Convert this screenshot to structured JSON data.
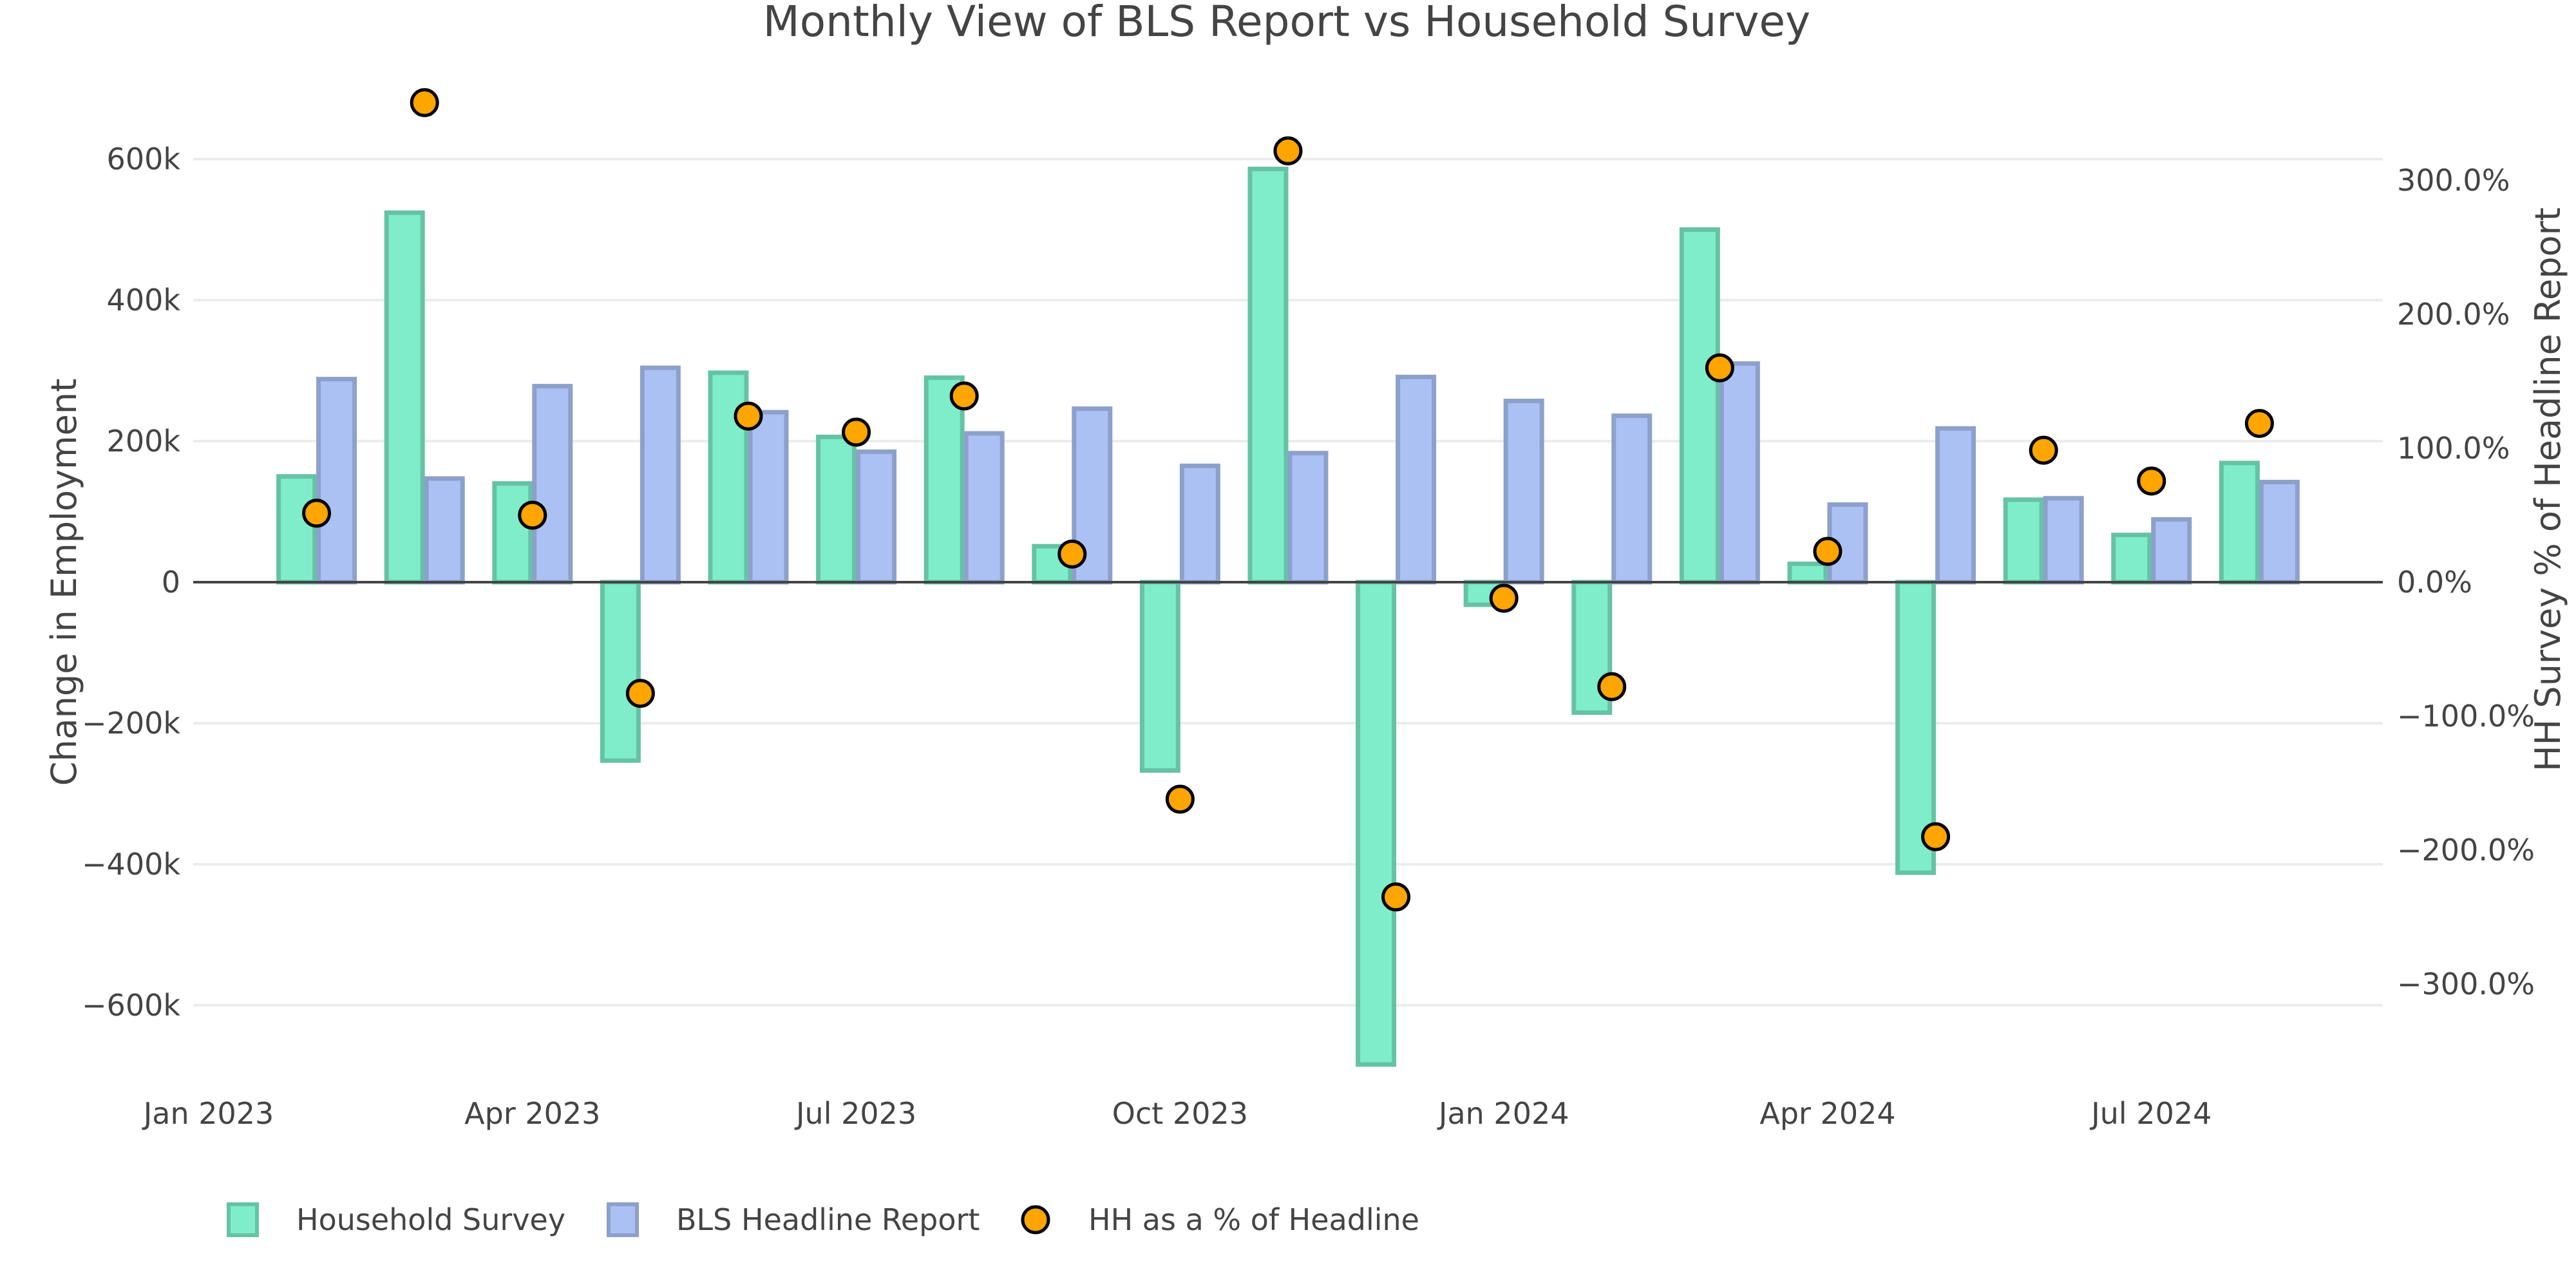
{
  "chart_data": {
    "type": "bar",
    "title": "Monthly View of BLS Report vs Household Survey",
    "xlabel": "",
    "ylabel": "Change in Employment",
    "y2label": "HH Survey % of Headline Report",
    "ylim": [
      -720000,
      700000
    ],
    "y2lim": [
      -354,
      340
    ],
    "y_ticks": [
      {
        "value": 600000,
        "label": "600k"
      },
      {
        "value": 400000,
        "label": "400k"
      },
      {
        "value": 200000,
        "label": "200k"
      },
      {
        "value": 0,
        "label": "0"
      },
      {
        "value": -200000,
        "label": "−200k"
      },
      {
        "value": -400000,
        "label": "−400k"
      },
      {
        "value": -600000,
        "label": "−600k"
      }
    ],
    "y2_ticks": [
      {
        "value": 300,
        "label": "300.0%"
      },
      {
        "value": 200,
        "label": "200.0%"
      },
      {
        "value": 100,
        "label": "100.0%"
      },
      {
        "value": 0,
        "label": "0.0%"
      },
      {
        "value": -100,
        "label": "−100.0%"
      },
      {
        "value": -200,
        "label": "−200.0%"
      },
      {
        "value": -300,
        "label": "−300.0%"
      }
    ],
    "x_ticks": [
      {
        "month_index": 0,
        "label": "Jan 2023"
      },
      {
        "month_index": 3,
        "label": "Apr 2023"
      },
      {
        "month_index": 6,
        "label": "Jul 2023"
      },
      {
        "month_index": 9,
        "label": "Oct 2023"
      },
      {
        "month_index": 12,
        "label": "Jan 2024"
      },
      {
        "month_index": 15,
        "label": "Apr 2024"
      },
      {
        "month_index": 18,
        "label": "Jul 2024"
      }
    ],
    "x_range_months": [
      -1.1,
      19.2
    ],
    "categories": [
      "2023-02",
      "2023-03",
      "2023-04",
      "2023-05",
      "2023-06",
      "2023-07",
      "2023-08",
      "2023-09",
      "2023-10",
      "2023-11",
      "2023-12",
      "2024-01",
      "2024-02",
      "2024-03",
      "2024-04",
      "2024-05",
      "2024-06",
      "2024-07",
      "2024-08"
    ],
    "month_index": [
      1,
      2,
      3,
      4,
      5,
      6,
      7,
      8,
      9,
      10,
      11,
      12,
      13,
      14,
      15,
      16,
      17,
      18,
      19
    ],
    "series": [
      {
        "name": "Household Survey",
        "type": "bar",
        "axis": "y",
        "fill": "#7fedc9",
        "stroke": "#66c2a5",
        "values": [
          150000,
          524000,
          140000,
          -253000,
          297000,
          206000,
          290000,
          51000,
          -267000,
          586000,
          -684000,
          -32000,
          -185000,
          500000,
          26000,
          -412000,
          117000,
          67000,
          169000
        ]
      },
      {
        "name": "BLS Headline Report",
        "type": "bar",
        "axis": "y",
        "fill": "#abc1f4",
        "stroke": "#8da0cb",
        "values": [
          288000,
          147000,
          278000,
          304000,
          241000,
          185000,
          211000,
          246000,
          165000,
          183000,
          291000,
          257000,
          236000,
          310000,
          110000,
          218000,
          119000,
          89000,
          142000
        ]
      },
      {
        "name": "HH as a % of Headline",
        "type": "scatter",
        "axis": "y2",
        "fill": "#ffa500",
        "stroke": "#000000",
        "values": [
          51.5,
          358,
          50,
          -83,
          124,
          112,
          139,
          21,
          -162,
          322,
          -235,
          -12,
          -78,
          160,
          23,
          -190,
          98.5,
          75.5,
          118.5
        ]
      }
    ],
    "legend": {
      "placement": "bottom-left",
      "items": [
        {
          "label": "Household Survey",
          "symbol": "bar"
        },
        {
          "label": "BLS Headline Report",
          "symbol": "bar"
        },
        {
          "label": "HH as a % of Headline",
          "symbol": "circle"
        }
      ]
    },
    "grid": true
  }
}
